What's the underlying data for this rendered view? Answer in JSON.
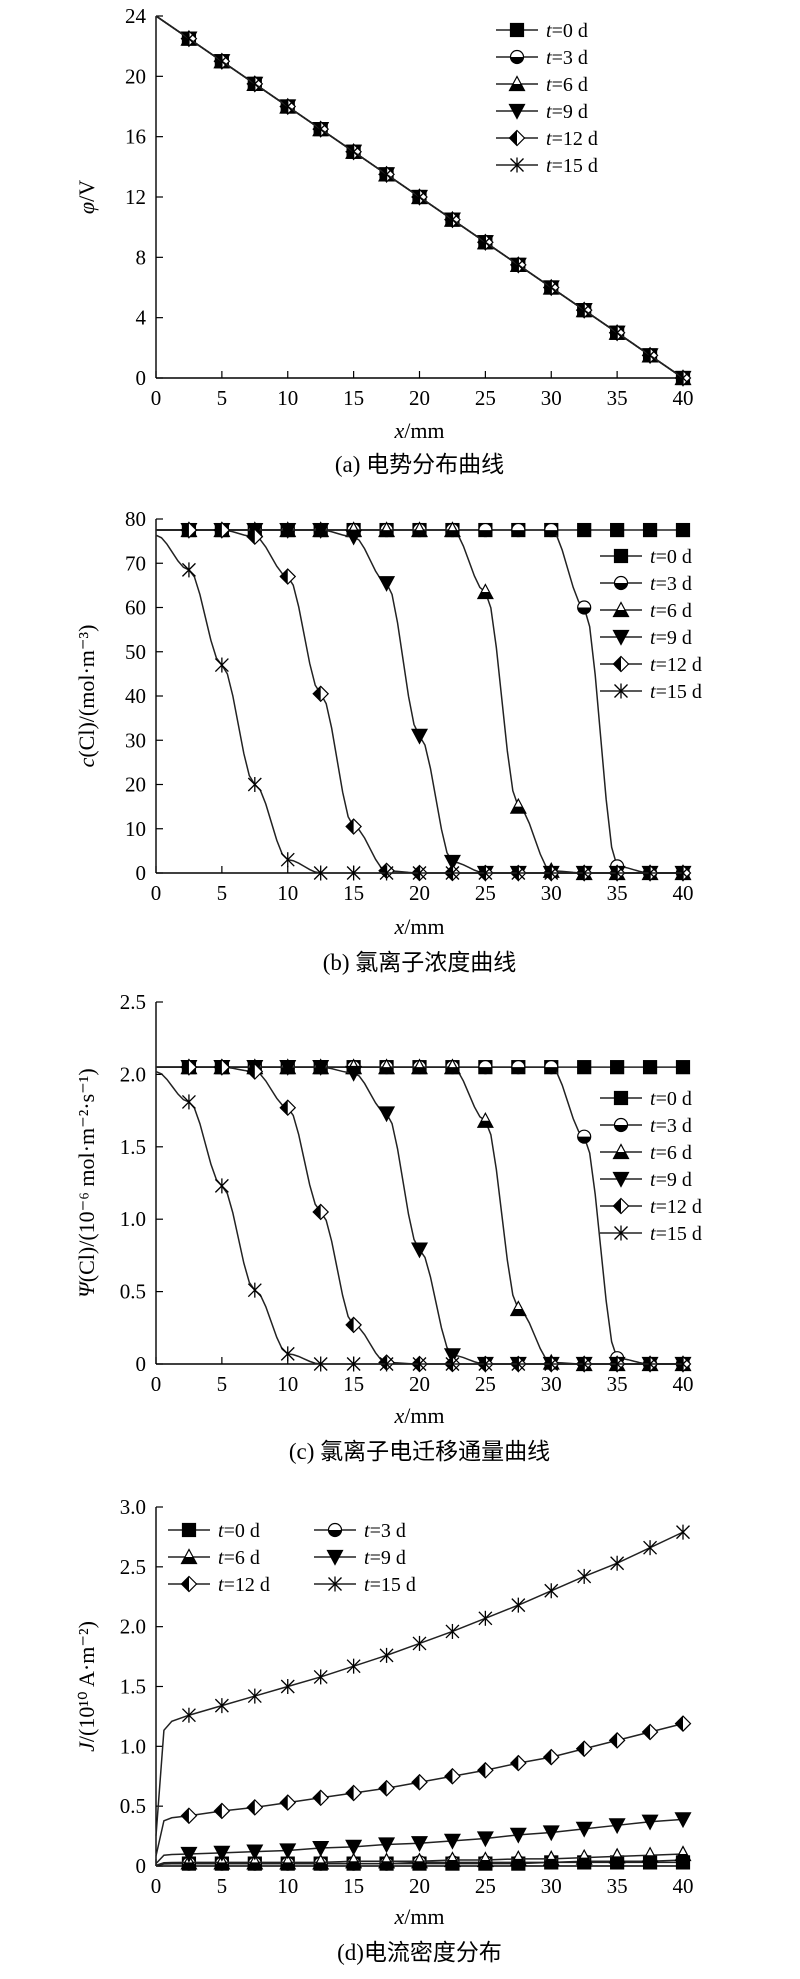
{
  "colors": {
    "ink": "#000000",
    "line": "#222222",
    "background": "#ffffff"
  },
  "chart_data": [
    {
      "type": "line",
      "caption": "(a) 电势分布曲线",
      "xlabel_var": "x",
      "xlabel_unit": "/mm",
      "ylabel_var": "φ",
      "ylabel_unit": "/V",
      "xlim": [
        0,
        40
      ],
      "ylim": [
        0,
        24
      ],
      "xticks": [
        "0",
        "5",
        "10",
        "15",
        "20",
        "25",
        "30",
        "35",
        "40"
      ],
      "yticks": [
        "0",
        "4",
        "8",
        "12",
        "16",
        "20",
        "24"
      ],
      "legend_position": "top-right",
      "x": [
        2.5,
        5,
        7.5,
        10,
        12.5,
        15,
        17.5,
        20,
        22.5,
        25,
        27.5,
        30,
        32.5,
        35,
        37.5,
        40
      ],
      "series": [
        {
          "name": "t=0 d",
          "marker": "square",
          "values": [
            22.5,
            21,
            19.5,
            18,
            16.5,
            15,
            13.5,
            12,
            10.5,
            9,
            7.5,
            6,
            4.5,
            3,
            1.5,
            0
          ]
        },
        {
          "name": "t=3 d",
          "marker": "half-circle",
          "values": [
            22.5,
            21,
            19.5,
            18,
            16.5,
            15,
            13.5,
            12,
            10.5,
            9,
            7.5,
            6,
            4.5,
            3,
            1.5,
            0
          ]
        },
        {
          "name": "t=6 d",
          "marker": "triangle-up",
          "values": [
            22.5,
            21,
            19.5,
            18,
            16.5,
            15,
            13.5,
            12,
            10.5,
            9,
            7.5,
            6,
            4.5,
            3,
            1.5,
            0
          ]
        },
        {
          "name": "t=9 d",
          "marker": "triangle-down",
          "values": [
            22.5,
            21,
            19.5,
            18,
            16.5,
            15,
            13.5,
            12,
            10.5,
            9,
            7.5,
            6,
            4.5,
            3,
            1.5,
            0
          ]
        },
        {
          "name": "t=12 d",
          "marker": "half-diamond",
          "values": [
            22.5,
            21,
            19.5,
            18,
            16.5,
            15,
            13.5,
            12,
            10.5,
            9,
            7.5,
            6,
            4.5,
            3,
            1.5,
            0
          ]
        },
        {
          "name": "t=15 d",
          "marker": "star-x",
          "values": [
            22.5,
            21,
            19.5,
            18,
            16.5,
            15,
            13.5,
            12,
            10.5,
            9,
            7.5,
            6,
            4.5,
            3,
            1.5,
            0
          ]
        }
      ]
    },
    {
      "type": "line",
      "caption": "(b) 氯离子浓度曲线",
      "xlabel_var": "x",
      "xlabel_unit": "/mm",
      "ylabel_var": "c",
      "ylabel_unit": "(Cl)/(mol·m⁻³)",
      "xlim": [
        0,
        40
      ],
      "ylim": [
        0,
        80
      ],
      "xticks": [
        "0",
        "5",
        "10",
        "15",
        "20",
        "25",
        "30",
        "35",
        "40"
      ],
      "yticks": [
        "0",
        "10",
        "20",
        "30",
        "40",
        "50",
        "60",
        "70",
        "80"
      ],
      "legend_position": "right",
      "x": [
        2.5,
        5,
        7.5,
        10,
        12.5,
        15,
        17.5,
        20,
        22.5,
        25,
        27.5,
        30,
        32.5,
        35,
        37.5,
        40
      ],
      "series": [
        {
          "name": "t=0 d",
          "marker": "square",
          "values": [
            77.5,
            77.5,
            77.5,
            77.5,
            77.5,
            77.5,
            77.5,
            77.5,
            77.5,
            77.5,
            77.5,
            77.5,
            77.5,
            77.5,
            77.5,
            77.5
          ]
        },
        {
          "name": "t=3 d",
          "marker": "half-circle",
          "values": [
            77.5,
            77.5,
            77.5,
            77.5,
            77.5,
            77.5,
            77.5,
            77.5,
            77.5,
            77.5,
            77.5,
            77.5,
            60,
            1.5,
            0,
            0
          ]
        },
        {
          "name": "t=6 d",
          "marker": "triangle-up",
          "values": [
            77.5,
            77.5,
            77.5,
            77.5,
            77.5,
            77.5,
            77.5,
            77.5,
            77.5,
            63.5,
            15,
            0.5,
            0,
            0,
            0,
            0
          ]
        },
        {
          "name": "t=9 d",
          "marker": "triangle-down",
          "values": [
            77.5,
            77.5,
            77.5,
            77.5,
            77.5,
            76,
            65.5,
            31,
            2.5,
            0,
            0,
            0,
            0,
            0,
            0,
            0
          ]
        },
        {
          "name": "t=12 d",
          "marker": "half-diamond",
          "values": [
            77.5,
            77.5,
            76,
            67,
            40.5,
            10.5,
            0.5,
            0,
            0,
            0,
            0,
            0,
            0,
            0,
            0,
            0
          ]
        },
        {
          "name": "t=15 d",
          "marker": "star-x",
          "values": [
            68.5,
            47,
            20,
            3,
            0,
            0,
            0,
            0,
            0,
            0,
            0,
            0,
            0,
            0,
            0,
            0
          ]
        }
      ]
    },
    {
      "type": "line",
      "caption": "(c) 氯离子电迁移通量曲线",
      "xlabel_var": "x",
      "xlabel_unit": "/mm",
      "ylabel_var": "Ψ",
      "ylabel_unit": "(Cl)/(10⁻⁶ mol·m⁻²·s⁻¹)",
      "xlim": [
        0,
        40
      ],
      "ylim": [
        0,
        2.5
      ],
      "xticks": [
        "0",
        "5",
        "10",
        "15",
        "20",
        "25",
        "30",
        "35",
        "40"
      ],
      "yticks": [
        "0",
        "0.5",
        "1.0",
        "1.5",
        "2.0",
        "2.5"
      ],
      "legend_position": "right",
      "x": [
        2.5,
        5,
        7.5,
        10,
        12.5,
        15,
        17.5,
        20,
        22.5,
        25,
        27.5,
        30,
        32.5,
        35,
        37.5,
        40
      ],
      "series": [
        {
          "name": "t=0 d",
          "marker": "square",
          "values": [
            2.05,
            2.05,
            2.05,
            2.05,
            2.05,
            2.05,
            2.05,
            2.05,
            2.05,
            2.05,
            2.05,
            2.05,
            2.05,
            2.05,
            2.05,
            2.05
          ]
        },
        {
          "name": "t=3 d",
          "marker": "half-circle",
          "values": [
            2.05,
            2.05,
            2.05,
            2.05,
            2.05,
            2.05,
            2.05,
            2.05,
            2.05,
            2.05,
            2.05,
            2.05,
            1.57,
            0.04,
            0,
            0
          ]
        },
        {
          "name": "t=6 d",
          "marker": "triangle-up",
          "values": [
            2.05,
            2.05,
            2.05,
            2.05,
            2.05,
            2.05,
            2.05,
            2.05,
            2.05,
            1.68,
            0.38,
            0.01,
            0,
            0,
            0,
            0
          ]
        },
        {
          "name": "t=9 d",
          "marker": "triangle-down",
          "values": [
            2.05,
            2.05,
            2.05,
            2.05,
            2.05,
            2.01,
            1.73,
            0.79,
            0.06,
            0,
            0,
            0,
            0,
            0,
            0,
            0
          ]
        },
        {
          "name": "t=12 d",
          "marker": "half-diamond",
          "values": [
            2.05,
            2.05,
            2.02,
            1.77,
            1.05,
            0.27,
            0.01,
            0,
            0,
            0,
            0,
            0,
            0,
            0,
            0,
            0
          ]
        },
        {
          "name": "t=15 d",
          "marker": "star-x",
          "values": [
            1.81,
            1.23,
            0.51,
            0.07,
            0,
            0,
            0,
            0,
            0,
            0,
            0,
            0,
            0,
            0,
            0,
            0
          ]
        }
      ]
    },
    {
      "type": "line",
      "caption": "(d)电流密度分布",
      "xlabel_var": "x",
      "xlabel_unit": "/mm",
      "ylabel_var": "J",
      "ylabel_unit": "/(10¹⁰ A·m⁻²)",
      "xlim": [
        0,
        40
      ],
      "ylim": [
        0,
        3.0
      ],
      "xticks": [
        "0",
        "5",
        "10",
        "15",
        "20",
        "25",
        "30",
        "35",
        "40"
      ],
      "yticks": [
        "0",
        "0.5",
        "1.0",
        "1.5",
        "2.0",
        "2.5",
        "3.0"
      ],
      "legend_position": "top-left, two columns",
      "x": [
        2.5,
        5,
        7.5,
        10,
        12.5,
        15,
        17.5,
        20,
        22.5,
        25,
        27.5,
        30,
        32.5,
        35,
        37.5,
        40
      ],
      "series": [
        {
          "name": "t=0 d",
          "marker": "square",
          "values": [
            0.02,
            0.02,
            0.02,
            0.02,
            0.02,
            0.02,
            0.02,
            0.02,
            0.02,
            0.02,
            0.02,
            0.03,
            0.03,
            0.03,
            0.03,
            0.03
          ]
        },
        {
          "name": "t=3 d",
          "marker": "half-circle",
          "values": [
            0.02,
            0.02,
            0.02,
            0.02,
            0.02,
            0.02,
            0.02,
            0.03,
            0.03,
            0.03,
            0.03,
            0.03,
            0.04,
            0.04,
            0.04,
            0.05
          ]
        },
        {
          "name": "t=6 d",
          "marker": "triangle-up",
          "values": [
            0.03,
            0.03,
            0.03,
            0.03,
            0.03,
            0.04,
            0.04,
            0.04,
            0.05,
            0.05,
            0.06,
            0.06,
            0.07,
            0.08,
            0.09,
            0.1
          ]
        },
        {
          "name": "t=9 d",
          "marker": "triangle-down",
          "values": [
            0.1,
            0.11,
            0.12,
            0.13,
            0.15,
            0.16,
            0.18,
            0.19,
            0.21,
            0.23,
            0.26,
            0.28,
            0.31,
            0.34,
            0.37,
            0.39
          ]
        },
        {
          "name": "t=12 d",
          "marker": "half-diamond",
          "values": [
            0.42,
            0.46,
            0.49,
            0.53,
            0.57,
            0.61,
            0.65,
            0.7,
            0.75,
            0.8,
            0.86,
            0.91,
            0.98,
            1.05,
            1.12,
            1.19
          ]
        },
        {
          "name": "t=15 d",
          "marker": "star-x",
          "values": [
            1.26,
            1.34,
            1.42,
            1.5,
            1.58,
            1.67,
            1.76,
            1.86,
            1.96,
            2.07,
            2.18,
            2.3,
            2.42,
            2.53,
            2.66,
            2.79
          ]
        }
      ]
    }
  ]
}
